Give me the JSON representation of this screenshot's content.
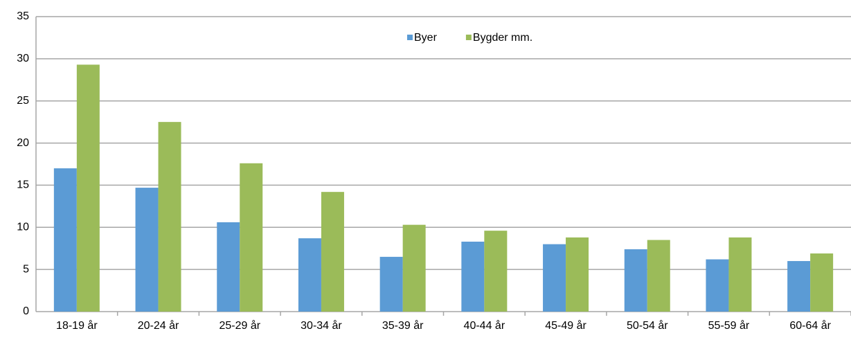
{
  "chart_data": {
    "type": "bar",
    "categories": [
      "18-19 år",
      "20-24 år",
      "25-29 år",
      "30-34 år",
      "35-39 år",
      "40-44 år",
      "45-49 år",
      "50-54 år",
      "55-59 år",
      "60-64 år"
    ],
    "series": [
      {
        "name": "Byer",
        "color": "#5b9bd5",
        "values": [
          17.0,
          14.7,
          10.6,
          8.7,
          6.5,
          8.3,
          8.0,
          7.4,
          6.2,
          6.0
        ]
      },
      {
        "name": "Bygder mm.",
        "color": "#9bbb59",
        "values": [
          29.3,
          22.5,
          17.6,
          14.2,
          10.3,
          9.6,
          8.8,
          8.5,
          8.8,
          6.9
        ]
      }
    ],
    "ylim": [
      0,
      35
    ],
    "yticks": [
      0,
      5,
      10,
      15,
      20,
      25,
      30,
      35
    ],
    "grid": true,
    "legend": "top"
  }
}
